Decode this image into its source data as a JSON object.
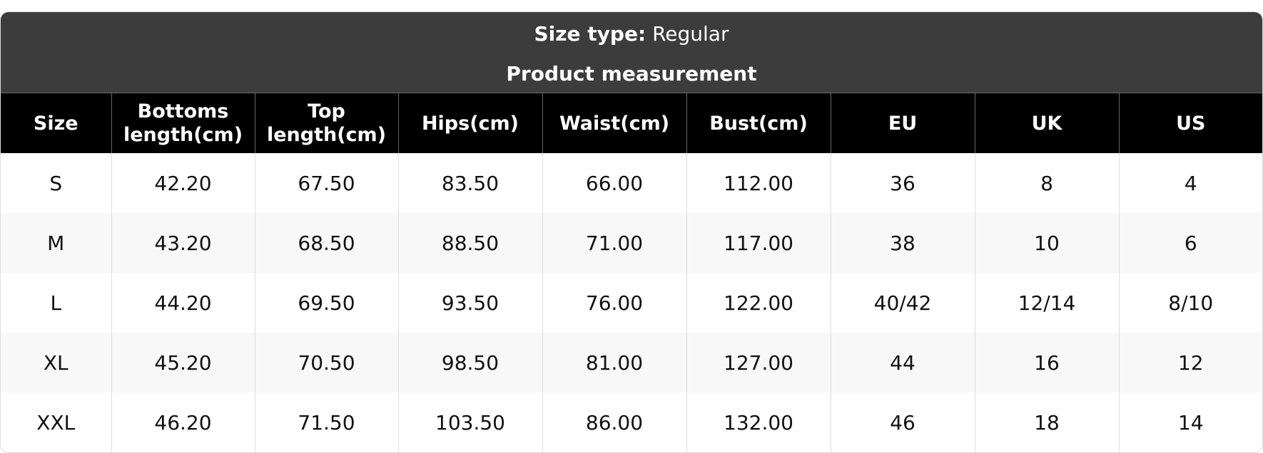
{
  "title": {
    "size_type_label": "Size type:",
    "size_type_value": "Regular",
    "subtitle": "Product measurement"
  },
  "columns": [
    "Size",
    "Bottoms length(cm)",
    "Top length(cm)",
    "Hips(cm)",
    "Waist(cm)",
    "Bust(cm)",
    "EU",
    "UK",
    "US"
  ],
  "rows": [
    [
      "S",
      "42.20",
      "67.50",
      "83.50",
      "66.00",
      "112.00",
      "36",
      "8",
      "4"
    ],
    [
      "M",
      "43.20",
      "68.50",
      "88.50",
      "71.00",
      "117.00",
      "38",
      "10",
      "6"
    ],
    [
      "L",
      "44.20",
      "69.50",
      "93.50",
      "76.00",
      "122.00",
      "40/42",
      "12/14",
      "8/10"
    ],
    [
      "XL",
      "45.20",
      "70.50",
      "98.50",
      "81.00",
      "127.00",
      "44",
      "16",
      "12"
    ],
    [
      "XXL",
      "46.20",
      "71.50",
      "103.50",
      "86.00",
      "132.00",
      "46",
      "18",
      "14"
    ]
  ]
}
